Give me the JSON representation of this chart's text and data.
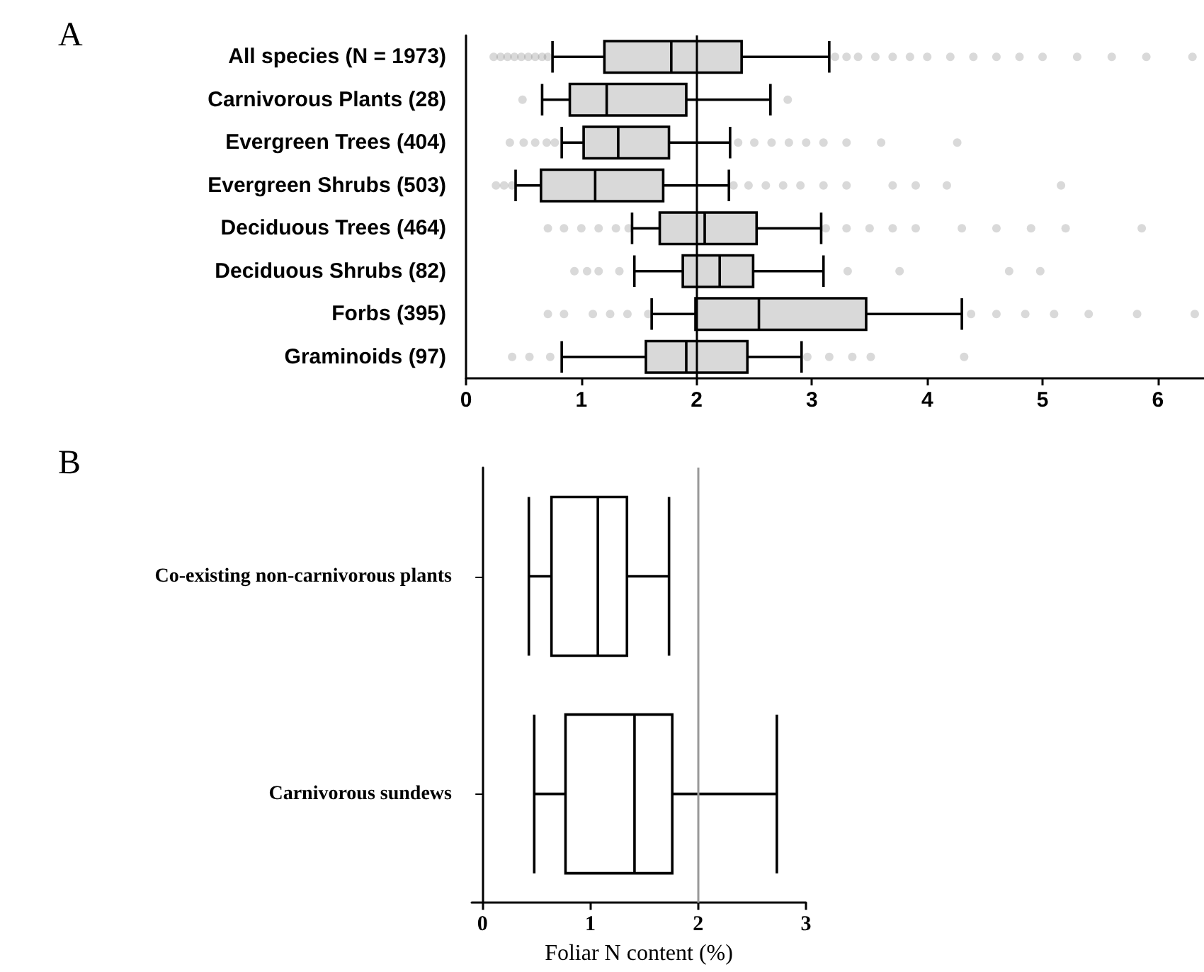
{
  "chart_data": [
    {
      "type": "box",
      "orientation": "horizontal",
      "title": "A",
      "color": "#d9d9d9",
      "grid": false,
      "categories": [
        "All species (N = 1973)",
        "Carnivorous Plants (28)",
        "Evergreen Trees (404)",
        "Evergreen Shrubs (503)",
        "Deciduous Trees (464)",
        "Deciduous Shrubs (82)",
        "Forbs (395)",
        "Graminoids (97)"
      ],
      "boxes": [
        {
          "low": 0.75,
          "q1": 1.2,
          "median": 1.78,
          "q3": 2.39,
          "high": 3.15,
          "outliers": [
            0.24,
            0.3,
            0.36,
            0.42,
            0.48,
            0.54,
            0.6,
            0.66,
            0.71,
            3.2,
            3.3,
            3.4,
            3.55,
            3.7,
            3.85,
            4.0,
            4.2,
            4.4,
            4.6,
            4.8,
            5.0,
            5.3,
            5.6,
            5.9,
            6.3
          ]
        },
        {
          "low": 0.66,
          "q1": 0.9,
          "median": 1.22,
          "q3": 1.91,
          "high": 2.64,
          "outliers": [
            0.49,
            2.79
          ]
        },
        {
          "low": 0.83,
          "q1": 1.02,
          "median": 1.32,
          "q3": 1.76,
          "high": 2.29,
          "outliers": [
            0.38,
            0.5,
            0.6,
            0.7,
            0.77,
            2.36,
            2.5,
            2.65,
            2.8,
            2.95,
            3.1,
            3.3,
            3.6,
            4.26
          ]
        },
        {
          "low": 0.43,
          "q1": 0.65,
          "median": 1.12,
          "q3": 1.71,
          "high": 2.28,
          "outliers": [
            0.26,
            0.33,
            0.4,
            2.32,
            2.45,
            2.6,
            2.75,
            2.9,
            3.1,
            3.3,
            3.7,
            3.9,
            4.17,
            5.16
          ]
        },
        {
          "low": 1.44,
          "q1": 1.68,
          "median": 2.07,
          "q3": 2.52,
          "high": 3.08,
          "outliers": [
            0.71,
            0.85,
            1.0,
            1.15,
            1.3,
            1.41,
            3.12,
            3.3,
            3.5,
            3.7,
            3.9,
            4.3,
            4.6,
            4.9,
            5.2,
            5.86
          ]
        },
        {
          "low": 1.46,
          "q1": 1.88,
          "median": 2.2,
          "q3": 2.49,
          "high": 3.1,
          "outliers": [
            0.94,
            1.05,
            1.15,
            1.33,
            3.31,
            3.76,
            4.71,
            4.98
          ]
        },
        {
          "low": 1.61,
          "q1": 1.99,
          "median": 2.54,
          "q3": 3.47,
          "high": 4.3,
          "outliers": [
            0.71,
            0.85,
            1.1,
            1.25,
            1.4,
            1.58,
            4.38,
            4.6,
            4.85,
            5.1,
            5.4,
            5.82,
            6.32
          ]
        },
        {
          "low": 0.83,
          "q1": 1.56,
          "median": 1.91,
          "q3": 2.44,
          "high": 2.91,
          "outliers": [
            0.4,
            0.55,
            0.73,
            2.96,
            3.15,
            3.35,
            3.51,
            4.32
          ]
        }
      ],
      "xlim": [
        0,
        6.4
      ],
      "xticks": [
        0,
        1,
        2,
        3,
        4,
        5,
        6
      ],
      "ref_lines": [
        {
          "axis": "x",
          "value": 2,
          "color": "#000000"
        }
      ]
    },
    {
      "type": "box",
      "orientation": "horizontal",
      "title": "B",
      "color": "#ffffff",
      "grid": false,
      "categories": [
        "Co-existing non-carnivorous plants",
        "Carnivorous sundews"
      ],
      "boxes": [
        {
          "low": 0.43,
          "q1": 0.64,
          "median": 1.07,
          "q3": 1.34,
          "high": 1.73
        },
        {
          "low": 0.48,
          "q1": 0.77,
          "median": 1.41,
          "q3": 1.76,
          "high": 2.73
        }
      ],
      "xlim": [
        -0.1,
        3
      ],
      "xticks": [
        0,
        1,
        2,
        3
      ],
      "xlabel": "Foliar N content (%)",
      "ref_lines": [
        {
          "axis": "x",
          "value": 2,
          "color": "#999999"
        }
      ]
    }
  ]
}
